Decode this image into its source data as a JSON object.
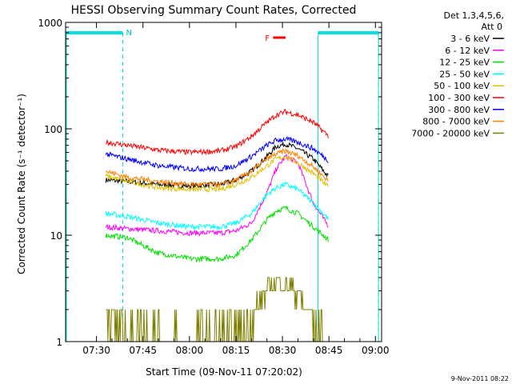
{
  "chart_data": {
    "type": "line",
    "title": "HESSI Observing Summary Count Rates, Corrected",
    "xlabel": "Start Time (09-Nov-11 07:20:02)",
    "ylabel": "Corrected Count Rate (s⁻¹ detector⁻¹)",
    "x_tick_labels": [
      "07:30",
      "07:45",
      "08:00",
      "08:15",
      "08:30",
      "08:45",
      "09:00"
    ],
    "y_tick_labels": [
      "1",
      "10",
      "100",
      "1000"
    ],
    "y_scale": "log",
    "ylim": [
      1,
      1000
    ],
    "xlim": [
      "07:20:02",
      "09:02:00"
    ],
    "legend_title": [
      "Det 1,3,4,5,6,",
      "Att 0"
    ],
    "legend_position": "right",
    "timestamp": "9-Nov-2011 08:22",
    "annotations": {
      "night_marker": "N",
      "flare_marker": "F",
      "night_intervals": [
        [
          "07:20:02",
          "07:38:30"
        ],
        [
          "08:41:30",
          "09:01:00"
        ]
      ],
      "flare_interval": [
        "08:27:00",
        "08:31:00"
      ]
    },
    "series": [
      {
        "name": "3 - 6 keV",
        "color": "#000000",
        "times": [
          "07:33",
          "07:40",
          "07:50",
          "08:00",
          "08:10",
          "08:15",
          "08:20",
          "08:25",
          "08:28",
          "08:31",
          "08:35",
          "08:40",
          "08:45"
        ],
        "values": [
          33,
          32,
          30,
          29,
          30,
          33,
          40,
          55,
          68,
          72,
          65,
          52,
          35
        ]
      },
      {
        "name": "6 - 12 keV",
        "color": "#ff00ff",
        "times": [
          "07:33",
          "07:40",
          "07:50",
          "08:00",
          "08:10",
          "08:15",
          "08:20",
          "08:25",
          "08:28",
          "08:31",
          "08:35",
          "08:40",
          "08:45"
        ],
        "values": [
          12,
          11.5,
          11,
          10.5,
          10.5,
          11,
          13,
          25,
          42,
          55,
          48,
          20,
          12
        ]
      },
      {
        "name": "12 - 25 keV",
        "color": "#00e000",
        "times": [
          "07:33",
          "07:40",
          "07:45",
          "07:50",
          "08:00",
          "08:10",
          "08:15",
          "08:20",
          "08:25",
          "08:28",
          "08:31",
          "08:35",
          "08:40",
          "08:45"
        ],
        "values": [
          10,
          9.5,
          8,
          6.8,
          6,
          6,
          6.5,
          9,
          14,
          17,
          18,
          16,
          12,
          9
        ]
      },
      {
        "name": "25 - 50 keV",
        "color": "#00ffff",
        "times": [
          "07:33",
          "07:40",
          "07:50",
          "08:00",
          "08:10",
          "08:15",
          "08:20",
          "08:25",
          "08:28",
          "08:31",
          "08:35",
          "08:40",
          "08:45"
        ],
        "values": [
          16,
          15,
          13,
          12,
          12,
          13,
          16,
          24,
          28,
          30,
          27,
          20,
          14
        ]
      },
      {
        "name": "50 - 100 keV",
        "color": "#e0c000",
        "times": [
          "07:33",
          "07:40",
          "07:50",
          "08:00",
          "08:10",
          "08:15",
          "08:20",
          "08:25",
          "08:28",
          "08:31",
          "08:35",
          "08:40",
          "08:45"
        ],
        "values": [
          36,
          32,
          28,
          27,
          27,
          30,
          35,
          45,
          52,
          55,
          48,
          38,
          28
        ]
      },
      {
        "name": "100 - 300 keV",
        "color": "#ff0000",
        "times": [
          "07:33",
          "07:40",
          "07:50",
          "08:00",
          "08:10",
          "08:15",
          "08:20",
          "08:25",
          "08:28",
          "08:31",
          "08:35",
          "08:40",
          "08:45"
        ],
        "values": [
          75,
          70,
          63,
          60,
          62,
          68,
          85,
          115,
          135,
          145,
          135,
          115,
          85
        ]
      },
      {
        "name": "300 - 800 keV",
        "color": "#0000ff",
        "times": [
          "07:33",
          "07:40",
          "07:50",
          "08:00",
          "08:10",
          "08:15",
          "08:20",
          "08:25",
          "08:28",
          "08:31",
          "08:35",
          "08:40",
          "08:45"
        ],
        "values": [
          58,
          52,
          45,
          42,
          42,
          45,
          55,
          70,
          78,
          80,
          75,
          65,
          50
        ]
      },
      {
        "name": "800 - 7000 keV",
        "color": "#ff8000",
        "times": [
          "07:33",
          "07:40",
          "07:50",
          "08:00",
          "08:10",
          "08:15",
          "08:20",
          "08:25",
          "08:28",
          "08:31",
          "08:35",
          "08:40",
          "08:45"
        ],
        "values": [
          40,
          35,
          32,
          30,
          30,
          33,
          40,
          52,
          58,
          62,
          56,
          44,
          32
        ]
      },
      {
        "name": "7000 - 20000 keV",
        "color": "#808000",
        "times": [
          "07:33",
          "07:38",
          "07:45",
          "07:50",
          "08:15",
          "08:20",
          "08:23",
          "08:26",
          "08:29",
          "08:32",
          "08:35",
          "08:38",
          "08:40",
          "08:43"
        ],
        "values": [
          2,
          1.5,
          1.5,
          1,
          1,
          1.5,
          2.5,
          3.5,
          3.8,
          3.5,
          2.8,
          2,
          1.5,
          1
        ]
      }
    ]
  }
}
